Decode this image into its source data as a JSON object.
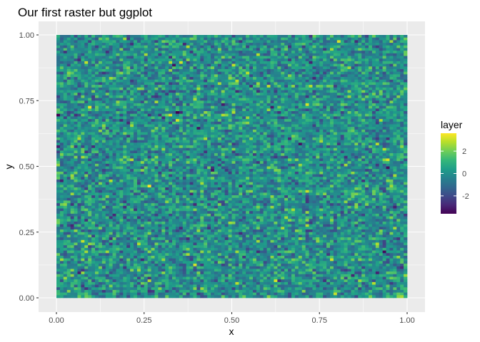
{
  "chart_data": {
    "type": "heatmap",
    "title": "Our first raster but ggplot",
    "xlabel": "x",
    "ylabel": "y",
    "xlim": [
      0,
      1
    ],
    "ylim": [
      0,
      1
    ],
    "x_ticks": [
      0,
      0.25,
      0.5,
      0.75,
      1
    ],
    "y_ticks": [
      0,
      0.25,
      0.5,
      0.75,
      1
    ],
    "x_tick_labels": [
      "0.00",
      "0.25",
      "0.50",
      "0.75",
      "1.00"
    ],
    "y_tick_labels": [
      "0.00",
      "0.25",
      "0.50",
      "0.75",
      "1.00"
    ],
    "grid": true,
    "panel_background": "#ebebeb",
    "grid_color": "#ffffff",
    "raster": {
      "ncol": 100,
      "nrow": 100,
      "distribution": "standard normal random values",
      "value_range": [
        -3.6,
        3.6
      ]
    },
    "legend": {
      "title": "layer",
      "position": "right",
      "ticks": [
        2,
        0,
        -2
      ],
      "tick_labels": [
        "2",
        "0",
        "-2"
      ],
      "colormap": "viridis",
      "colors": [
        "#440154",
        "#482878",
        "#3e4a89",
        "#31688e",
        "#26828e",
        "#1f9e89",
        "#35b779",
        "#6ece58",
        "#b5de2b",
        "#fde725"
      ]
    }
  }
}
